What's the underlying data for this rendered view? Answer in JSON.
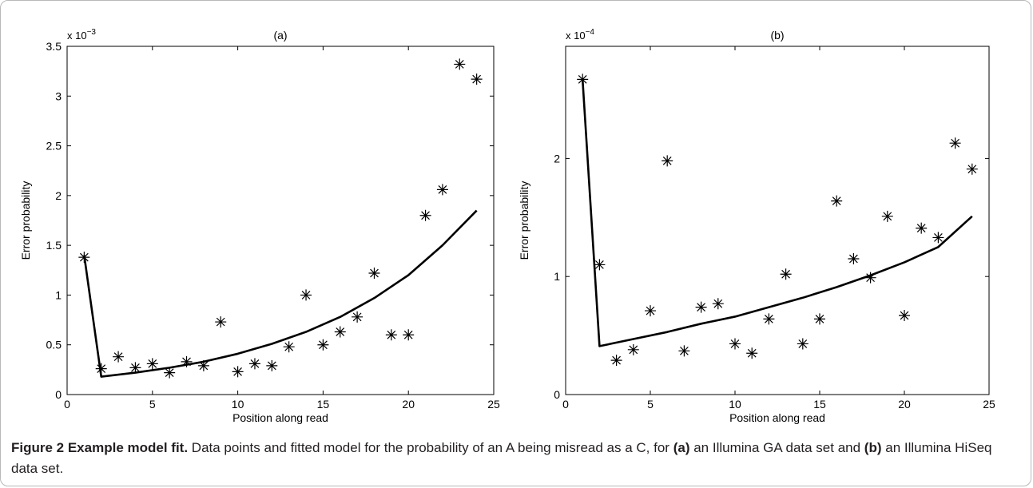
{
  "chart_data": [
    {
      "type": "scatter",
      "title": "(a)",
      "xlabel": "Position along read",
      "ylabel": "Error probability",
      "exponent_base": "x 10",
      "exponent_power": "−3",
      "xlim": [
        0,
        25
      ],
      "ylim": [
        0,
        3.5
      ],
      "xticks": [
        0,
        5,
        10,
        15,
        20,
        25
      ],
      "yticks": [
        0,
        0.5,
        1,
        1.5,
        2,
        2.5,
        3,
        3.5
      ],
      "grid": false,
      "series": [
        {
          "kind": "scatter",
          "marker": "asterisk",
          "x": [
            1,
            2,
            3,
            4,
            5,
            6,
            7,
            8,
            9,
            10,
            11,
            12,
            13,
            14,
            15,
            16,
            17,
            18,
            19,
            20,
            21,
            22,
            23,
            24
          ],
          "y": [
            1.38,
            0.26,
            0.38,
            0.27,
            0.31,
            0.22,
            0.33,
            0.29,
            0.73,
            0.23,
            0.31,
            0.29,
            0.48,
            1.0,
            0.5,
            0.63,
            0.78,
            1.22,
            0.6,
            0.6,
            1.8,
            2.06,
            3.32,
            3.17
          ]
        },
        {
          "kind": "line",
          "x": [
            1,
            2,
            4,
            6,
            8,
            10,
            12,
            14,
            16,
            18,
            20,
            22,
            24
          ],
          "y": [
            1.4,
            0.18,
            0.22,
            0.27,
            0.33,
            0.41,
            0.51,
            0.63,
            0.78,
            0.97,
            1.2,
            1.5,
            1.85
          ]
        }
      ]
    },
    {
      "type": "scatter",
      "title": "(b)",
      "xlabel": "Position along read",
      "ylabel": "Error probability",
      "exponent_base": "x 10",
      "exponent_power": "−4",
      "xlim": [
        0,
        25
      ],
      "ylim": [
        0,
        2.95
      ],
      "xticks": [
        0,
        5,
        10,
        15,
        20,
        25
      ],
      "yticks": [
        0,
        1,
        2
      ],
      "grid": false,
      "series": [
        {
          "kind": "scatter",
          "marker": "asterisk",
          "x": [
            1,
            2,
            3,
            4,
            5,
            6,
            7,
            8,
            9,
            10,
            11,
            12,
            13,
            14,
            15,
            16,
            17,
            18,
            19,
            20,
            21,
            22,
            23,
            24
          ],
          "y": [
            2.67,
            1.1,
            0.29,
            0.38,
            0.71,
            1.98,
            0.37,
            0.74,
            0.77,
            0.43,
            0.35,
            0.64,
            1.02,
            0.43,
            0.64,
            1.64,
            1.15,
            0.99,
            1.51,
            0.67,
            1.41,
            1.33,
            2.13,
            1.91
          ]
        },
        {
          "kind": "line",
          "x": [
            1,
            2,
            4,
            6,
            8,
            10,
            12,
            14,
            16,
            18,
            20,
            22,
            24
          ],
          "y": [
            2.67,
            0.41,
            0.47,
            0.53,
            0.6,
            0.66,
            0.74,
            0.82,
            0.91,
            1.01,
            1.12,
            1.25,
            1.51
          ]
        }
      ]
    }
  ],
  "caption": {
    "title": "Figure 2 Example model fit.",
    "text_1": " Data points and fitted model for the probability of an A being misread as a C, for ",
    "ref_a": "(a)",
    "text_2": " an Illumina GA data set and ",
    "ref_b": "(b)",
    "text_3": " an Illumina HiSeq data set."
  }
}
